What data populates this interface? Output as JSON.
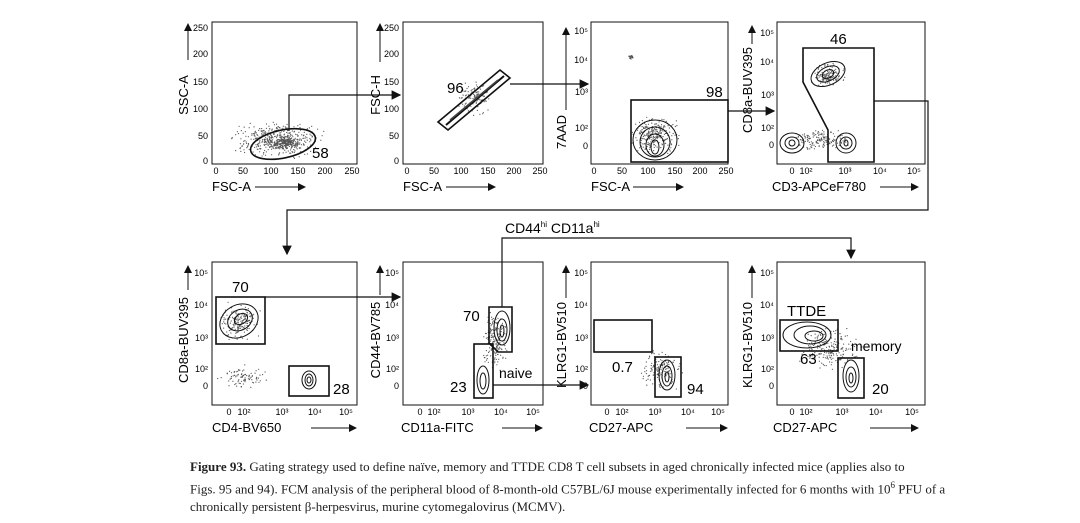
{
  "panels_top": [
    {
      "id": "p1",
      "ylabel": "SSC-A",
      "xlabel": "FSC-A",
      "yticks": [
        "250",
        "200",
        "150",
        "100",
        "50",
        "0"
      ],
      "xticks": [
        "0",
        "50",
        "100",
        "150",
        "200",
        "250"
      ],
      "gate_value": "58"
    },
    {
      "id": "p2",
      "ylabel": "FSC-H",
      "xlabel": "FSC-A",
      "yticks": [
        "250",
        "200",
        "150",
        "100",
        "50",
        "0"
      ],
      "xticks": [
        "0",
        "50",
        "100",
        "150",
        "200",
        "250"
      ],
      "gate_value": "96"
    },
    {
      "id": "p3",
      "ylabel": "7AAD",
      "xlabel": "FSC-A",
      "yticks": [
        "10⁵",
        "10⁴",
        "10³",
        "10²",
        "0"
      ],
      "xticks": [
        "0",
        "50",
        "100",
        "150",
        "200",
        "250"
      ],
      "gate_value": "98"
    },
    {
      "id": "p4",
      "ylabel": "CD8a-BUV395",
      "xlabel": "CD3-APCeF780",
      "yticks": [
        "10⁵",
        "10⁴",
        "10³",
        "10²",
        "0"
      ],
      "xticks": [
        "0",
        "10²",
        "10³",
        "10⁴",
        "10⁵"
      ],
      "gate_value": "46"
    }
  ],
  "panels_bottom": [
    {
      "id": "p5",
      "ylabel": "CD8a-BUV395",
      "xlabel": "CD4-BV650",
      "yticks": [
        "10⁵",
        "10⁴",
        "10³",
        "10²",
        "0"
      ],
      "xticks": [
        "0",
        "10²",
        "10³",
        "10⁴",
        "10⁵"
      ],
      "gate_values": [
        "70",
        "28"
      ]
    },
    {
      "id": "p6",
      "ylabel": "CD44-BV785",
      "xlabel": "CD11a-FITC",
      "yticks": [
        "10⁵",
        "10⁴",
        "10³",
        "10²",
        "0"
      ],
      "xticks": [
        "0",
        "10²",
        "10³",
        "10⁴",
        "10⁵"
      ],
      "gate_values": [
        "70",
        "23"
      ],
      "annotation": "naive"
    },
    {
      "id": "p7",
      "ylabel": "KLRG1-BV510",
      "xlabel": "CD27-APC",
      "yticks": [
        "10⁵",
        "10⁴",
        "10³",
        "10²",
        "0"
      ],
      "xticks": [
        "0",
        "10²",
        "10³",
        "10⁴",
        "10⁵"
      ],
      "gate_values": [
        "0.7",
        "94"
      ]
    },
    {
      "id": "p8",
      "ylabel": "KLRG1-BV510",
      "xlabel": "CD27-APC",
      "yticks": [
        "10⁵",
        "10⁴",
        "10³",
        "10²",
        "0"
      ],
      "xticks": [
        "0",
        "10²",
        "10³",
        "10⁴",
        "10⁵"
      ],
      "gate_values": [
        "63",
        "20"
      ],
      "annotations": [
        "TTDE",
        "memory"
      ]
    }
  ],
  "connector_label": {
    "main": "CD44",
    "sup1": "hi",
    "mid": " CD11a",
    "sup2": "hi"
  },
  "caption": {
    "figure_label": "Figure 93.",
    "line1": "Gating strategy used to define naïve, memory and TTDE CD8 T cell subsets in aged chronically infected mice (applies also to",
    "line2a": "Figs. 95 and 94). FCM analysis of the peripheral blood of 8-month-old C57BL/6J mouse experimentally infected for 6 months with 10",
    "line2sup": "6",
    "line2b": " PFU of a",
    "line3": "chronically persistent β-herpesvirus, murine cytomegalovirus (MCMV)."
  }
}
